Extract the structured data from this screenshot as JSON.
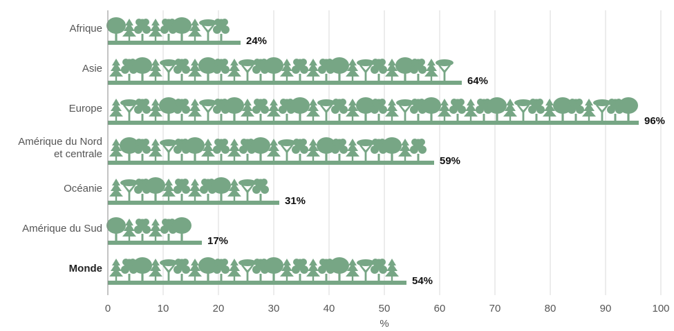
{
  "chart_data": {
    "type": "bar",
    "orientation": "horizontal",
    "categories": [
      "Afrique",
      "Asie",
      "Europe",
      "Amérique du Nord\net centrale",
      "Océanie",
      "Amérique du Sud",
      "Monde"
    ],
    "values": [
      24,
      64,
      96,
      59,
      31,
      17,
      54
    ],
    "value_labels": [
      "24%",
      "64%",
      "96%",
      "59%",
      "31%",
      "17%",
      "54%"
    ],
    "xlabel": "%",
    "ylabel": "",
    "xlim": [
      0,
      100
    ],
    "xticks": [
      0,
      10,
      20,
      30,
      40,
      50,
      60,
      70,
      80,
      90,
      100
    ],
    "grid": true,
    "bar_style": "tree pictogram",
    "colors": {
      "bar": "#77a685",
      "grid": "#d8d8d8",
      "axis": "#888888"
    },
    "highlighted_category": "Monde"
  }
}
